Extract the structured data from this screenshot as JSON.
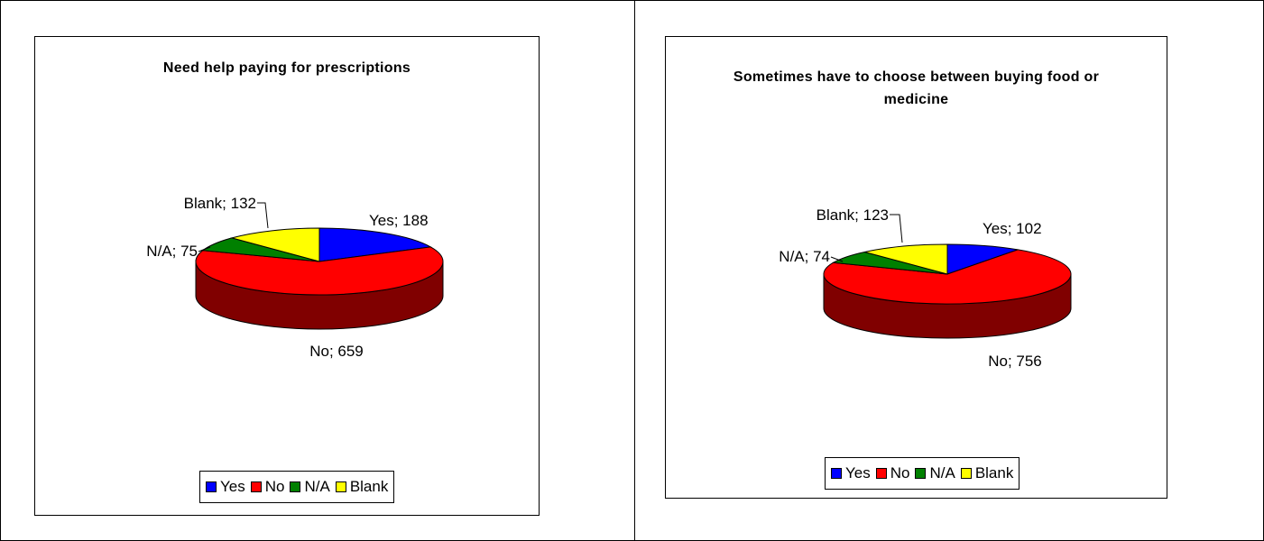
{
  "colors": {
    "Yes": "#0000FF",
    "No": "#FF0000",
    "N/A": "#008000",
    "Blank": "#FFFF00",
    "No_side": "#800000",
    "Yes_side": "#000080",
    "N/A_side": "#004000",
    "Blank_side": "#808000"
  },
  "legend": {
    "items": [
      "Yes",
      "No",
      "N/A",
      "Blank"
    ]
  },
  "chart_data": [
    {
      "type": "pie",
      "style": "3d",
      "title": "Need help paying for prescriptions",
      "categories": [
        "Yes",
        "No",
        "N/A",
        "Blank"
      ],
      "values": [
        188,
        659,
        75,
        132
      ],
      "data_labels": [
        "Yes; 188",
        "No; 659",
        "N/A; 75",
        "Blank; 132"
      ],
      "legend_position": "bottom"
    },
    {
      "type": "pie",
      "style": "3d",
      "title": "Sometimes have to choose between buying food or medicine",
      "categories": [
        "Yes",
        "No",
        "N/A",
        "Blank"
      ],
      "values": [
        102,
        756,
        74,
        123
      ],
      "data_labels": [
        "Yes; 102",
        "No; 756",
        "N/A; 74",
        "Blank; 123"
      ],
      "legend_position": "bottom"
    }
  ]
}
